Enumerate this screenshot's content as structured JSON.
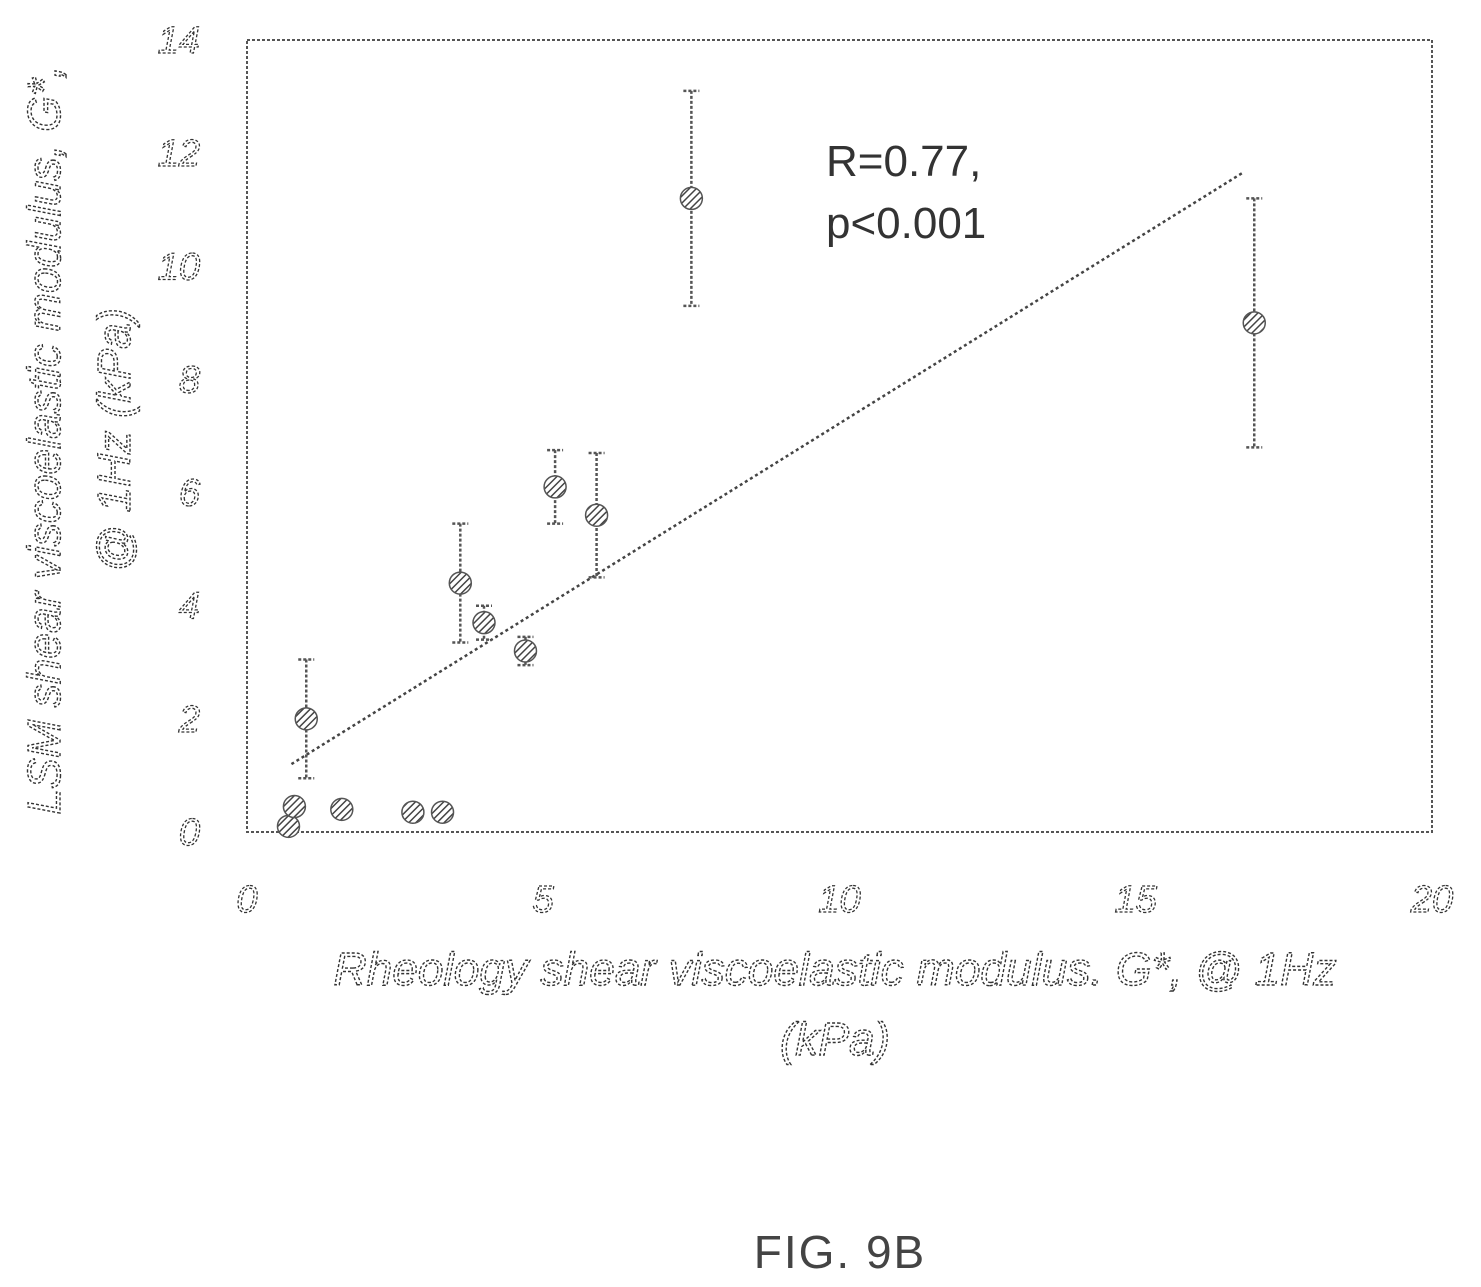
{
  "chart_data": {
    "type": "scatter",
    "title": "",
    "xlabel": "Rheology shear viscoelastic modulus. G*, @ 1Hz",
    "xlabel_unit": "(kPa)",
    "ylabel": "LSM shear viscoelastic modulus, G*,",
    "ylabel_unit": "@ 1Hz (kPa)",
    "xlim": [
      0,
      20
    ],
    "ylim": [
      0,
      14
    ],
    "xticks": [
      "0",
      "5",
      "10",
      "15",
      "20"
    ],
    "yticks": [
      "0",
      "2",
      "4",
      "6",
      "8",
      "10",
      "12",
      "14"
    ],
    "xtick_values": [
      0,
      5,
      10,
      15,
      20
    ],
    "ytick_values": [
      0,
      2,
      4,
      6,
      8,
      10,
      12,
      14
    ],
    "grid": false,
    "legend": "none",
    "points": [
      {
        "x": 0.7,
        "y": 0.1,
        "err": 0
      },
      {
        "x": 0.8,
        "y": 0.45,
        "err": 0
      },
      {
        "x": 1.0,
        "y": 2.0,
        "err": 1.05
      },
      {
        "x": 1.6,
        "y": 0.4,
        "err": 0
      },
      {
        "x": 2.8,
        "y": 0.35,
        "err": 0
      },
      {
        "x": 3.3,
        "y": 0.35,
        "err": 0
      },
      {
        "x": 3.6,
        "y": 4.4,
        "err": 1.05
      },
      {
        "x": 4.0,
        "y": 3.7,
        "err": 0.3
      },
      {
        "x": 4.7,
        "y": 3.2,
        "err": 0.25
      },
      {
        "x": 5.2,
        "y": 6.1,
        "err": 0.65
      },
      {
        "x": 5.9,
        "y": 5.6,
        "err": 1.1
      },
      {
        "x": 7.5,
        "y": 11.2,
        "err": 1.9
      },
      {
        "x": 17.0,
        "y": 9.0,
        "err": 2.2
      }
    ],
    "trendline": {
      "x": [
        0.75,
        16.8
      ],
      "y": [
        1.2,
        11.65
      ]
    },
    "annotation": {
      "line1": "R=0.77,",
      "line2": "p<0.001"
    },
    "colors": {
      "marker": "#555555",
      "axis": "#333333"
    }
  },
  "figure_label": "FIG. 9B"
}
